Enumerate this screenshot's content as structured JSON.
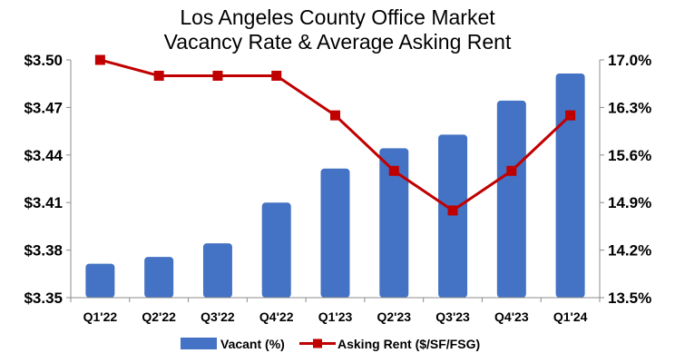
{
  "chart_data": {
    "type": "bar",
    "title": [
      "Los Angeles County Office Market",
      "Vacancy Rate & Average Asking Rent"
    ],
    "categories": [
      "Q1'22",
      "Q2'22",
      "Q3'22",
      "Q4'22",
      "Q1'23",
      "Q2'23",
      "Q3'23",
      "Q4'23",
      "Q1'24"
    ],
    "series": [
      {
        "name": "Vacant (%)",
        "type": "bar",
        "axis": "right",
        "color": "#4472C4",
        "values": [
          14.0,
          14.1,
          14.3,
          14.9,
          15.4,
          15.7,
          15.9,
          16.4,
          16.8
        ]
      },
      {
        "name": "Asking Rent ($/SF/FSG)",
        "type": "line",
        "axis": "left",
        "color": "#C00000",
        "values": [
          3.5,
          3.49,
          3.49,
          3.49,
          3.465,
          3.43,
          3.405,
          3.43,
          3.465
        ]
      }
    ],
    "y_left": {
      "min": 3.35,
      "max": 3.5,
      "ticks": [
        3.35,
        3.38,
        3.41,
        3.44,
        3.47,
        3.5
      ],
      "tick_labels": [
        "$3.35",
        "$3.38",
        "$3.41",
        "$3.44",
        "$3.47",
        "$3.50"
      ]
    },
    "y_right": {
      "min": 13.5,
      "max": 17.0,
      "ticks": [
        13.5,
        14.2,
        14.9,
        15.6,
        16.3,
        17.0
      ],
      "tick_labels": [
        "13.5%",
        "14.2%",
        "14.9%",
        "15.6%",
        "16.3%",
        "17.0%"
      ]
    },
    "legend": {
      "position": "bottom",
      "labels": [
        "Vacant (%)",
        "Asking Rent ($/SF/FSG)"
      ]
    }
  }
}
